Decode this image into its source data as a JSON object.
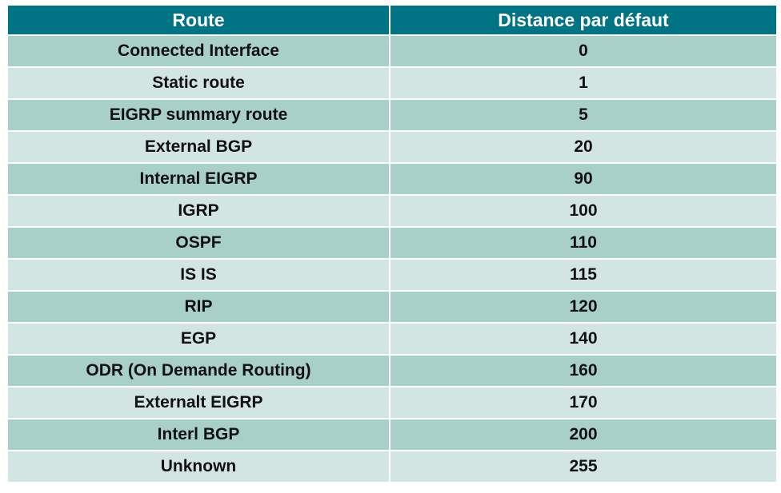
{
  "table": {
    "headers": [
      "Route",
      "Distance par défaut"
    ],
    "rows": [
      [
        "Connected Interface",
        "0"
      ],
      [
        "Static route",
        "1"
      ],
      [
        "EIGRP summary route",
        "5"
      ],
      [
        "External BGP",
        "20"
      ],
      [
        "Internal EIGRP",
        "90"
      ],
      [
        "IGRP",
        "100"
      ],
      [
        "OSPF",
        "110"
      ],
      [
        "IS IS",
        "115"
      ],
      [
        "RIP",
        "120"
      ],
      [
        "EGP",
        "140"
      ],
      [
        "ODR (On Demande Routing)",
        "160"
      ],
      [
        "Externalt EIGRP",
        "170"
      ],
      [
        "Interl BGP",
        "200"
      ],
      [
        "Unknown",
        "255"
      ]
    ]
  },
  "colors": {
    "header_bg": "#007384",
    "row_dark": "#a9cfc9",
    "row_light": "#d2e5e2"
  }
}
